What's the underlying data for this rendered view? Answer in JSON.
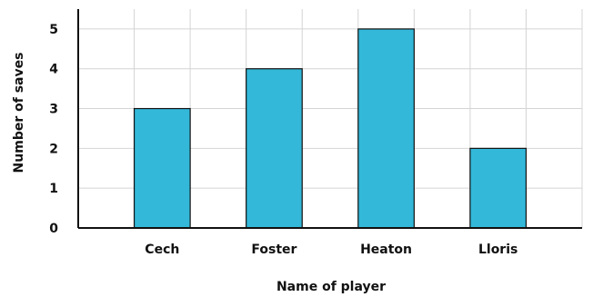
{
  "chart_data": {
    "type": "bar",
    "categories": [
      "Cech",
      "Foster",
      "Heaton",
      "Lloris"
    ],
    "values": [
      3,
      4,
      5,
      2
    ],
    "title": "",
    "xlabel": "Name of player",
    "ylabel": "Number of saves",
    "ylim": [
      0,
      5.5
    ],
    "yticks": [
      0,
      1,
      2,
      3,
      4,
      5
    ],
    "grid": true,
    "legend": "none"
  },
  "colors": {
    "bar": "#33b8d9",
    "bar_outline": "#111111",
    "grid": "#d4d4d4",
    "axis": "#111111"
  }
}
